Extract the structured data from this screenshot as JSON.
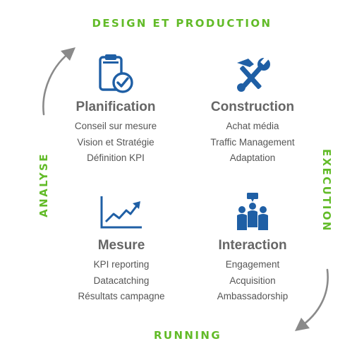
{
  "phases": {
    "top": "DESIGN ET PRODUCTION",
    "left": "ANALYSE",
    "right": "EXECUTION",
    "bottom": "RUNNING"
  },
  "quadrants": {
    "planification": {
      "icon": "clipboard-check-icon",
      "title": "Planification",
      "items": [
        "Conseil sur mesure",
        "Vision et Stratégie",
        "Définition KPI"
      ]
    },
    "construction": {
      "icon": "tools-icon",
      "title": "Construction",
      "items": [
        "Achat média",
        "Traffic Management",
        "Adaptation"
      ]
    },
    "mesure": {
      "icon": "line-chart-icon",
      "title": "Mesure",
      "items": [
        "KPI reporting",
        "Datacatching",
        "Résultats campagne"
      ]
    },
    "interaction": {
      "icon": "group-icon",
      "title": "Interaction",
      "items": [
        "Engagement",
        "Acquisition",
        "Ambassadorship"
      ]
    }
  },
  "colors": {
    "phase_green": "#62bb28",
    "icon_blue": "#1f5fa5",
    "title_gray": "#666666",
    "arrow_gray": "#8a8a8a"
  }
}
